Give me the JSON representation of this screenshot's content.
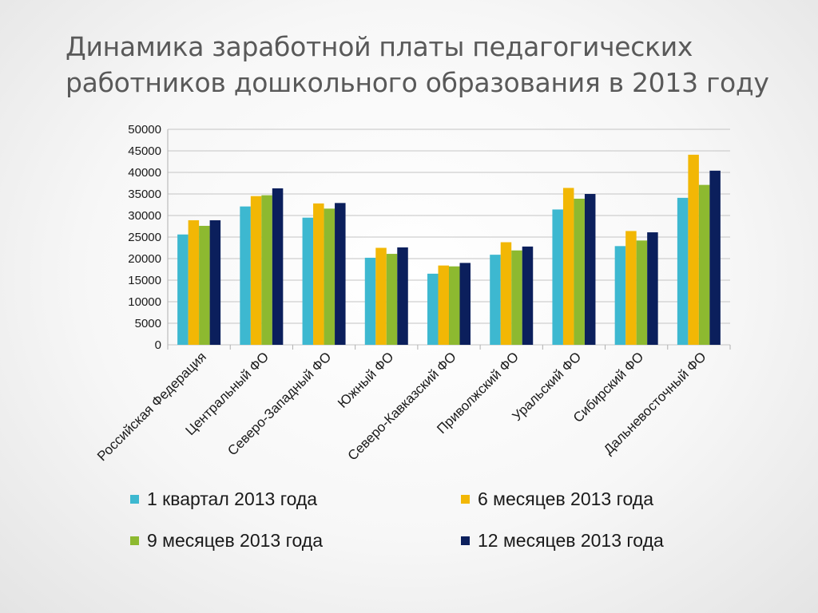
{
  "slide": {
    "title_line1": "Динамика заработной платы педагогических",
    "title_line2": "работников дошкольного образования в 2013 году"
  },
  "chart_data": {
    "type": "bar",
    "ylim": [
      0,
      50000
    ],
    "yticks": [
      0,
      5000,
      10000,
      15000,
      20000,
      25000,
      30000,
      35000,
      40000,
      45000,
      50000
    ],
    "grid": true,
    "legend_position": "bottom",
    "categories": [
      "Российская Федерация",
      "Центральный ФО",
      "Северо-Западный ФО",
      "Южный ФО",
      "Северо-Кавказский ФО",
      "Приволжский ФО",
      "Уральский ФО",
      "Сибирский ФО",
      "Дальневосточный ФО"
    ],
    "series": [
      {
        "name": "1 квартал 2013 года",
        "color": "#3DB8D0",
        "values": [
          25600,
          32100,
          29500,
          20200,
          16500,
          20900,
          31400,
          22900,
          34100
        ]
      },
      {
        "name": "6 месяцев 2013 года",
        "color": "#F2B705",
        "values": [
          28900,
          34500,
          32800,
          22500,
          18400,
          23800,
          36400,
          26400,
          44100
        ]
      },
      {
        "name": "9 месяцев 2013 года",
        "color": "#8DB930",
        "values": [
          27600,
          34700,
          31600,
          21100,
          18200,
          21900,
          33900,
          24200,
          37100
        ]
      },
      {
        "name": "12 месяцев 2013 года",
        "color": "#0B1F5C",
        "values": [
          28900,
          36300,
          32900,
          22600,
          19000,
          22800,
          35000,
          26100,
          40400
        ]
      }
    ]
  }
}
